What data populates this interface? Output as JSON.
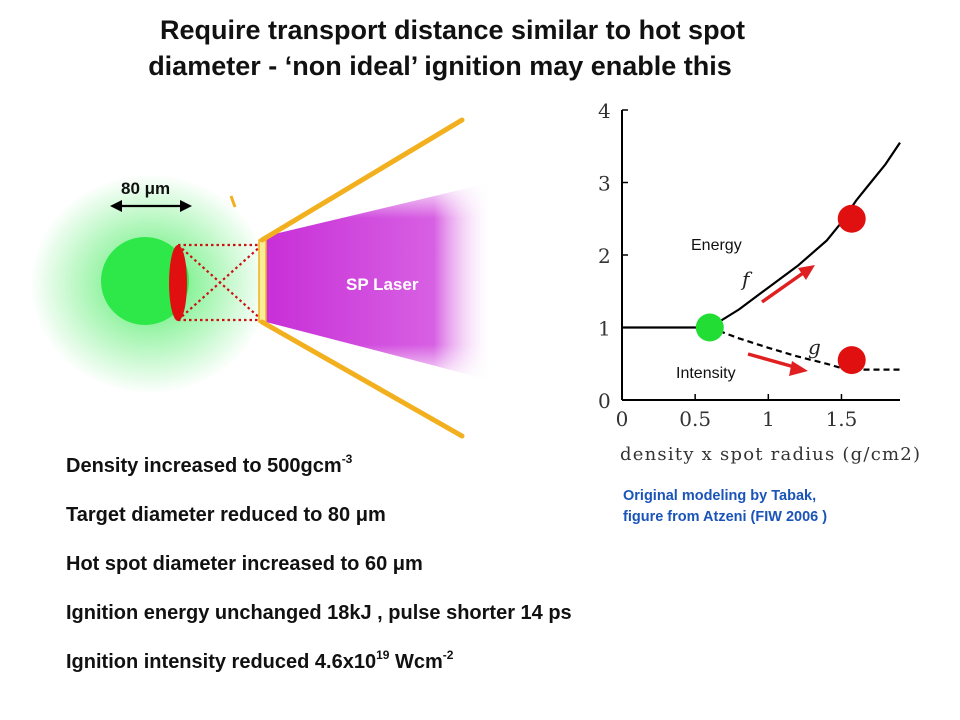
{
  "title": {
    "line1": "Require transport distance similar to hot spot",
    "line2": "diameter - ‘non ideal’ ignition may  enable this"
  },
  "diagram": {
    "dimension_label": "80 μm",
    "laser_label": "SP Laser",
    "colors": {
      "target": "#2ee84a",
      "hot_spot": "#e01010",
      "laser": "#cc33dd",
      "cone": "#f2b01e",
      "beam_lines": "#cc1111"
    }
  },
  "bullets": [
    {
      "text": "Density increased to 500gcm",
      "sup": "-3",
      "tail": ""
    },
    {
      "text": "Target diameter reduced to 80 μm",
      "sup": "",
      "tail": ""
    },
    {
      "text": "Hot spot diameter increased to 60 μm",
      "sup": "",
      "tail": ""
    },
    {
      "text": "Ignition energy unchanged 18kJ , pulse shorter 14 ps",
      "sup": "",
      "tail": ""
    },
    {
      "text": "Ignition intensity reduced 4.6x10",
      "sup": "19",
      "tail": " Wcm",
      "sup2": "-2"
    }
  ],
  "caption": {
    "line1": "Original modeling by Tabak,",
    "line2": "figure from  Atzeni (FIW 2006 )"
  },
  "chart_data": {
    "type": "line",
    "title": "",
    "xlabel": "density x spot radius (g/cm2)",
    "ylabel": "",
    "xlim": [
      0,
      1.9
    ],
    "ylim": [
      0,
      4
    ],
    "x_ticks": [
      "0",
      "0.5",
      "1",
      "1.5"
    ],
    "y_ticks": [
      "0",
      "1",
      "2",
      "3",
      "4"
    ],
    "series": [
      {
        "name": "f",
        "style": "solid",
        "x": [
          0,
          0.5,
          0.6,
          0.8,
          1.0,
          1.2,
          1.4,
          1.5,
          1.6,
          1.7,
          1.8,
          1.9
        ],
        "y": [
          1,
          1,
          1,
          1.25,
          1.55,
          1.85,
          2.2,
          2.45,
          2.75,
          3.0,
          3.25,
          3.55
        ]
      },
      {
        "name": "g",
        "style": "dashed",
        "x": [
          0.6,
          0.8,
          1.0,
          1.2,
          1.4,
          1.5,
          1.6,
          1.8,
          1.9
        ],
        "y": [
          1,
          0.85,
          0.72,
          0.6,
          0.5,
          0.44,
          0.42,
          0.42,
          0.42
        ]
      }
    ],
    "annotations": [
      {
        "text": "Energy",
        "color": "#000000"
      },
      {
        "text": "Intensity",
        "color": "#000000"
      }
    ],
    "markers": [
      {
        "x": 0.6,
        "y": 1.0,
        "color": "#22dd33"
      },
      {
        "x": 1.57,
        "y": 2.5,
        "color": "#e01010"
      },
      {
        "x": 1.57,
        "y": 0.55,
        "color": "#e01010"
      }
    ]
  }
}
